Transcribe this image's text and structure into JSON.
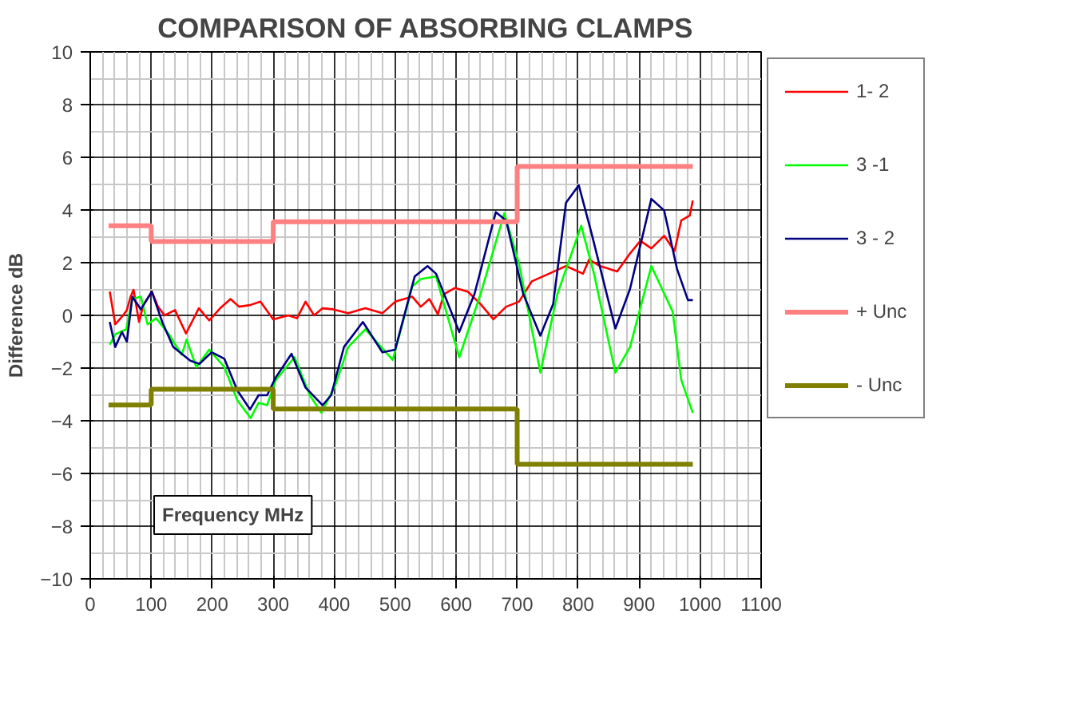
{
  "chart_data": {
    "type": "line",
    "title": "COMPARISON OF ABSORBING CLAMPS",
    "xlabel": "Frequency MHz",
    "ylabel": "Difference dB",
    "xlim": [
      0,
      1100
    ],
    "xticks": [
      0,
      100,
      200,
      300,
      400,
      500,
      600,
      700,
      800,
      900,
      1000,
      1100
    ],
    "ylim": [
      -10,
      10
    ],
    "yticks": [
      -10,
      -8,
      -6,
      -4,
      -2,
      0,
      2,
      4,
      6,
      8,
      10
    ],
    "grid": true,
    "legend": "right",
    "line_style": "solid",
    "marker": "none",
    "series": [
      {
        "name": "1- 2",
        "color": "#ff0000",
        "x": [
          32,
          41,
          52,
          60,
          66,
          71,
          80,
          87,
          101,
          111,
          122,
          139,
          157,
          178,
          195,
          213,
          230,
          244,
          262,
          279,
          300,
          325,
          339,
          353,
          367,
          381,
          398,
          423,
          451,
          479,
          500,
          528,
          542,
          556,
          570,
          580,
          598,
          619,
          640,
          661,
          682,
          703,
          724,
          752,
          780,
          808,
          818,
          836,
          864,
          885,
          902,
          920,
          941,
          958,
          969,
          983,
          988
        ],
        "values": [
          0.9,
          -0.34,
          -0.05,
          0.2,
          0.7,
          0.97,
          -0.25,
          0.39,
          0.9,
          0.33,
          0,
          0.2,
          -0.69,
          0.27,
          -0.19,
          0.27,
          0.62,
          0.33,
          0.39,
          0.52,
          -0.15,
          0,
          -0.11,
          0.52,
          0,
          0.27,
          0.23,
          0.08,
          0.27,
          0.08,
          0.52,
          0.71,
          0.33,
          0.62,
          0.04,
          0.81,
          1.04,
          0.9,
          0.43,
          -0.15,
          0.33,
          0.52,
          1.29,
          1.58,
          1.87,
          1.58,
          2.12,
          1.87,
          1.67,
          2.35,
          2.83,
          2.54,
          3.02,
          2.44,
          3.6,
          3.79,
          4.36
        ]
      },
      {
        "name": "3 -1",
        "color": "#00ff00",
        "x": [
          32,
          41,
          59,
          69,
          83,
          94,
          108,
          129,
          150,
          158,
          174,
          195,
          220,
          241,
          263,
          276,
          290,
          304,
          335,
          360,
          379,
          402,
          423,
          451,
          496,
          528,
          542,
          567,
          605,
          640,
          679,
          703,
          738,
          766,
          805,
          826,
          861,
          885,
          920,
          955,
          969,
          988
        ],
        "values": [
          -1.11,
          -0.72,
          -0.53,
          0.62,
          0.71,
          -0.34,
          -0.11,
          -0.72,
          -1.5,
          -0.92,
          -1.97,
          -1.3,
          -1.97,
          -3.22,
          -3.9,
          -3.32,
          -3.41,
          -2.46,
          -1.59,
          -3.03,
          -3.7,
          -2.64,
          -1.2,
          -0.53,
          -1.69,
          1.1,
          1.38,
          1.48,
          -1.59,
          0.81,
          3.88,
          1.96,
          -2.17,
          0.81,
          3.4,
          1.58,
          -2.17,
          -1.21,
          1.87,
          0.14,
          -2.45,
          -3.7
        ]
      },
      {
        "name": "3 - 2",
        "color": "#000080",
        "x": [
          32,
          41,
          52,
          60,
          69,
          83,
          101,
          118,
          136,
          164,
          179,
          199,
          220,
          241,
          262,
          276,
          290,
          304,
          330,
          353,
          381,
          395,
          416,
          447,
          479,
          500,
          532,
          553,
          567,
          605,
          630,
          665,
          682,
          710,
          738,
          759,
          780,
          801,
          822,
          861,
          885,
          920,
          941,
          962,
          980,
          988
        ],
        "values": [
          -0.25,
          -1.2,
          -0.63,
          -1.0,
          0.71,
          0.23,
          0.9,
          -0.25,
          -1.2,
          -1.72,
          -1.84,
          -1.4,
          -1.65,
          -2.84,
          -3.57,
          -3.03,
          -3.03,
          -2.36,
          -1.46,
          -2.74,
          -3.41,
          -3.03,
          -1.2,
          -0.25,
          -1.4,
          -1.3,
          1.48,
          1.87,
          1.58,
          -0.63,
          0.81,
          3.92,
          3.6,
          0.81,
          -0.77,
          0.43,
          4.27,
          4.94,
          3.11,
          -0.5,
          1.0,
          4.42,
          3.98,
          1.77,
          0.58,
          0.58
        ]
      },
      {
        "name": "+ Unc",
        "color": "#ff8080",
        "type": "step",
        "x": [
          30,
          100,
          300,
          700,
          988
        ],
        "values": [
          3.4,
          2.8,
          3.55,
          5.65,
          5.65
        ]
      },
      {
        "name": "- Unc",
        "color": "#808000",
        "type": "step",
        "x": [
          30,
          100,
          300,
          700,
          988
        ],
        "values": [
          -3.4,
          -2.8,
          -3.55,
          -5.65,
          -5.65
        ]
      }
    ]
  }
}
